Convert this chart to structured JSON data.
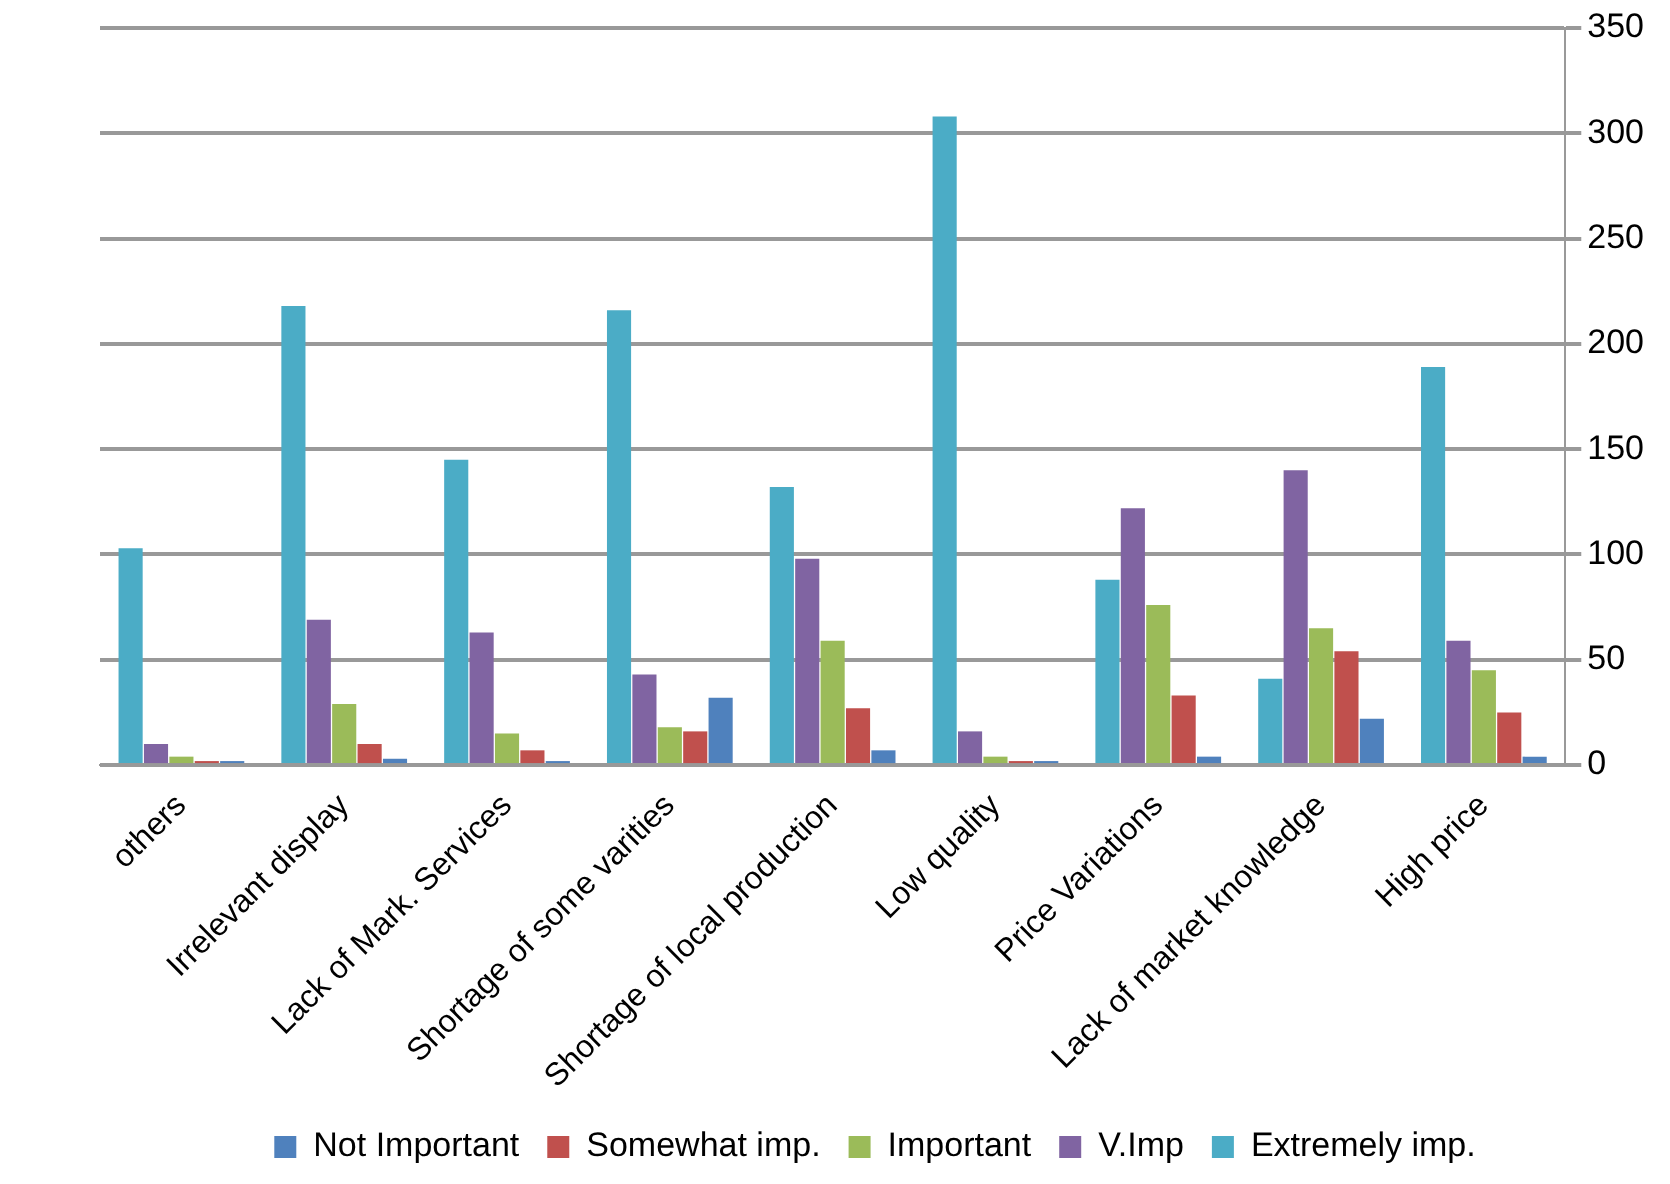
{
  "chart_data": {
    "type": "bar",
    "categories": [
      "others",
      "Irrelevant display",
      "Lack of Mark. Services",
      "Shortage of some varities",
      "Shortage of local production",
      "Low quality",
      "Price Variations",
      "Lack of market knowledge",
      "High price"
    ],
    "series": [
      {
        "name": "Not Important",
        "color": "#4f81bd",
        "values": [
          1,
          3,
          0,
          32,
          7,
          1,
          4,
          22,
          4
        ]
      },
      {
        "name": "Somewhat imp.",
        "color": "#c0504d",
        "values": [
          1,
          10,
          7,
          16,
          27,
          1,
          33,
          54,
          25
        ]
      },
      {
        "name": "Important",
        "color": "#9bbb59",
        "values": [
          4,
          29,
          15,
          18,
          59,
          4,
          76,
          65,
          45
        ]
      },
      {
        "name": "V.Imp",
        "color": "#8064a2",
        "values": [
          10,
          69,
          63,
          43,
          98,
          16,
          122,
          140,
          59
        ]
      },
      {
        "name": "Extremely imp.",
        "color": "#4bacc6",
        "values": [
          103,
          218,
          145,
          216,
          132,
          308,
          88,
          41,
          189
        ]
      }
    ],
    "ylim": [
      0,
      350
    ],
    "yticks": [
      0,
      50,
      100,
      150,
      200,
      250,
      300,
      350
    ],
    "grid": "y",
    "legend": "bottom"
  }
}
